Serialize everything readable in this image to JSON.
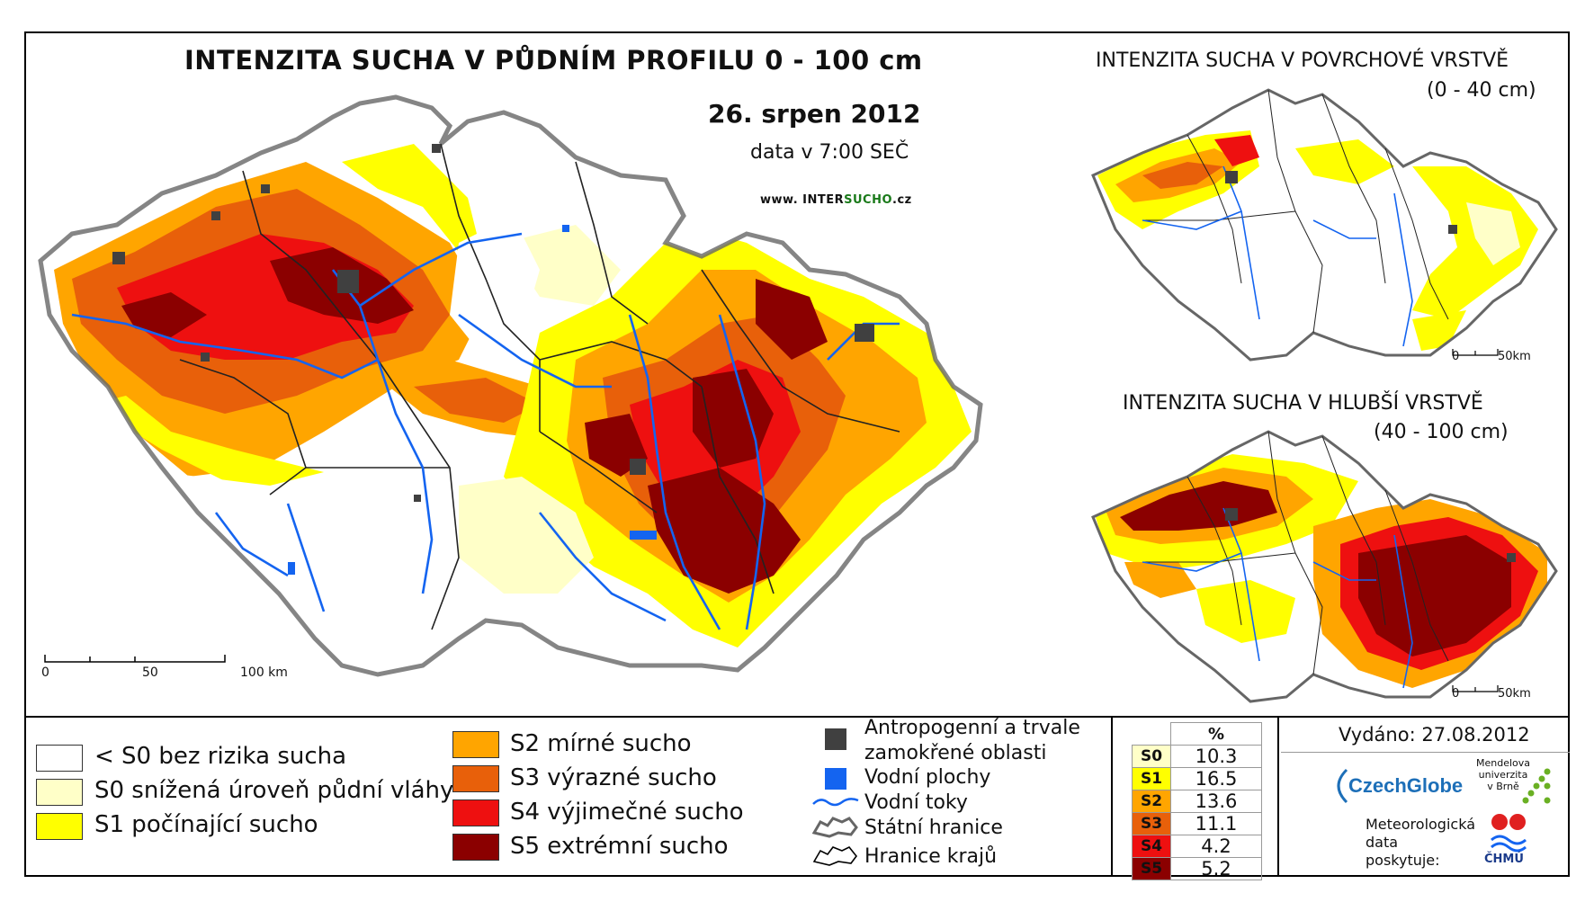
{
  "main": {
    "title": "INTENZITA SUCHA V PŮDNÍM PROFILU 0 - 100 cm",
    "date": "26. srpen 2012",
    "data_time": "data v 7:00 SEČ",
    "www_prefix": "www. INTER",
    "www_bold": "SUCHO",
    "www_suffix": ".cz",
    "scale": [
      "0",
      "50",
      "100 km"
    ]
  },
  "inset_top": {
    "title": "INTENZITA SUCHA V POVRCHOVÉ VRSTVĚ",
    "subtitle": "(0 - 40 cm)",
    "scale": [
      "0",
      "50km"
    ]
  },
  "inset_bottom": {
    "title": "INTENZITA SUCHA V HLUBŠÍ VRSTVĚ",
    "subtitle": "(40 - 100 cm)",
    "scale": [
      "0",
      "50km"
    ]
  },
  "legend": {
    "classes": [
      {
        "label": "< S0 bez rizika sucha",
        "color": "#ffffff"
      },
      {
        "label": "S0 snížená úroveň půdní vláhy",
        "color": "#ffffc8"
      },
      {
        "label": "S1 počínající sucho",
        "color": "#ffff00"
      },
      {
        "label": "S2 mírné sucho",
        "color": "#ffa500"
      },
      {
        "label": "S3 výrazné sucho",
        "color": "#e8600a"
      },
      {
        "label": "S4 výjimečné sucho",
        "color": "#ee1010"
      },
      {
        "label": "S5 extrémní sucho",
        "color": "#8b0000"
      }
    ],
    "other": [
      {
        "label": "Antropogenní a trvale",
        "label2": "zamokřené oblasti",
        "icon": "anthropogenic-area-icon",
        "color": "#404040"
      },
      {
        "label": "Vodní plochy",
        "icon": "water-body-icon",
        "color": "#1464f0"
      },
      {
        "label": "Vodní toky",
        "icon": "river-icon",
        "color": "#1464f0"
      },
      {
        "label": "Státní hranice",
        "icon": "state-border-icon",
        "color": "#555555"
      },
      {
        "label": "Hranice krajů",
        "icon": "region-border-icon",
        "color": "#000000"
      }
    ]
  },
  "percent_table": {
    "header": "%",
    "rows": [
      {
        "cls": "S0",
        "value": "10.3",
        "color": "#ffffc8"
      },
      {
        "cls": "S1",
        "value": "16.5",
        "color": "#ffff00"
      },
      {
        "cls": "S2",
        "value": "13.6",
        "color": "#ffa500"
      },
      {
        "cls": "S3",
        "value": "11.1",
        "color": "#e8600a"
      },
      {
        "cls": "S4",
        "value": "4.2",
        "color": "#ee1010"
      },
      {
        "cls": "S5",
        "value": "5.2",
        "color": "#8b0000"
      }
    ]
  },
  "footer": {
    "issued": "Vydáno: 27.08.2012",
    "czechglobe": "CzechGlobe",
    "mendel": [
      "Mendelova",
      "univerzita",
      "v Brně"
    ],
    "meteo": [
      "Meteorologická",
      "data",
      "poskytuje:"
    ],
    "chmu": "ČHMÚ"
  }
}
